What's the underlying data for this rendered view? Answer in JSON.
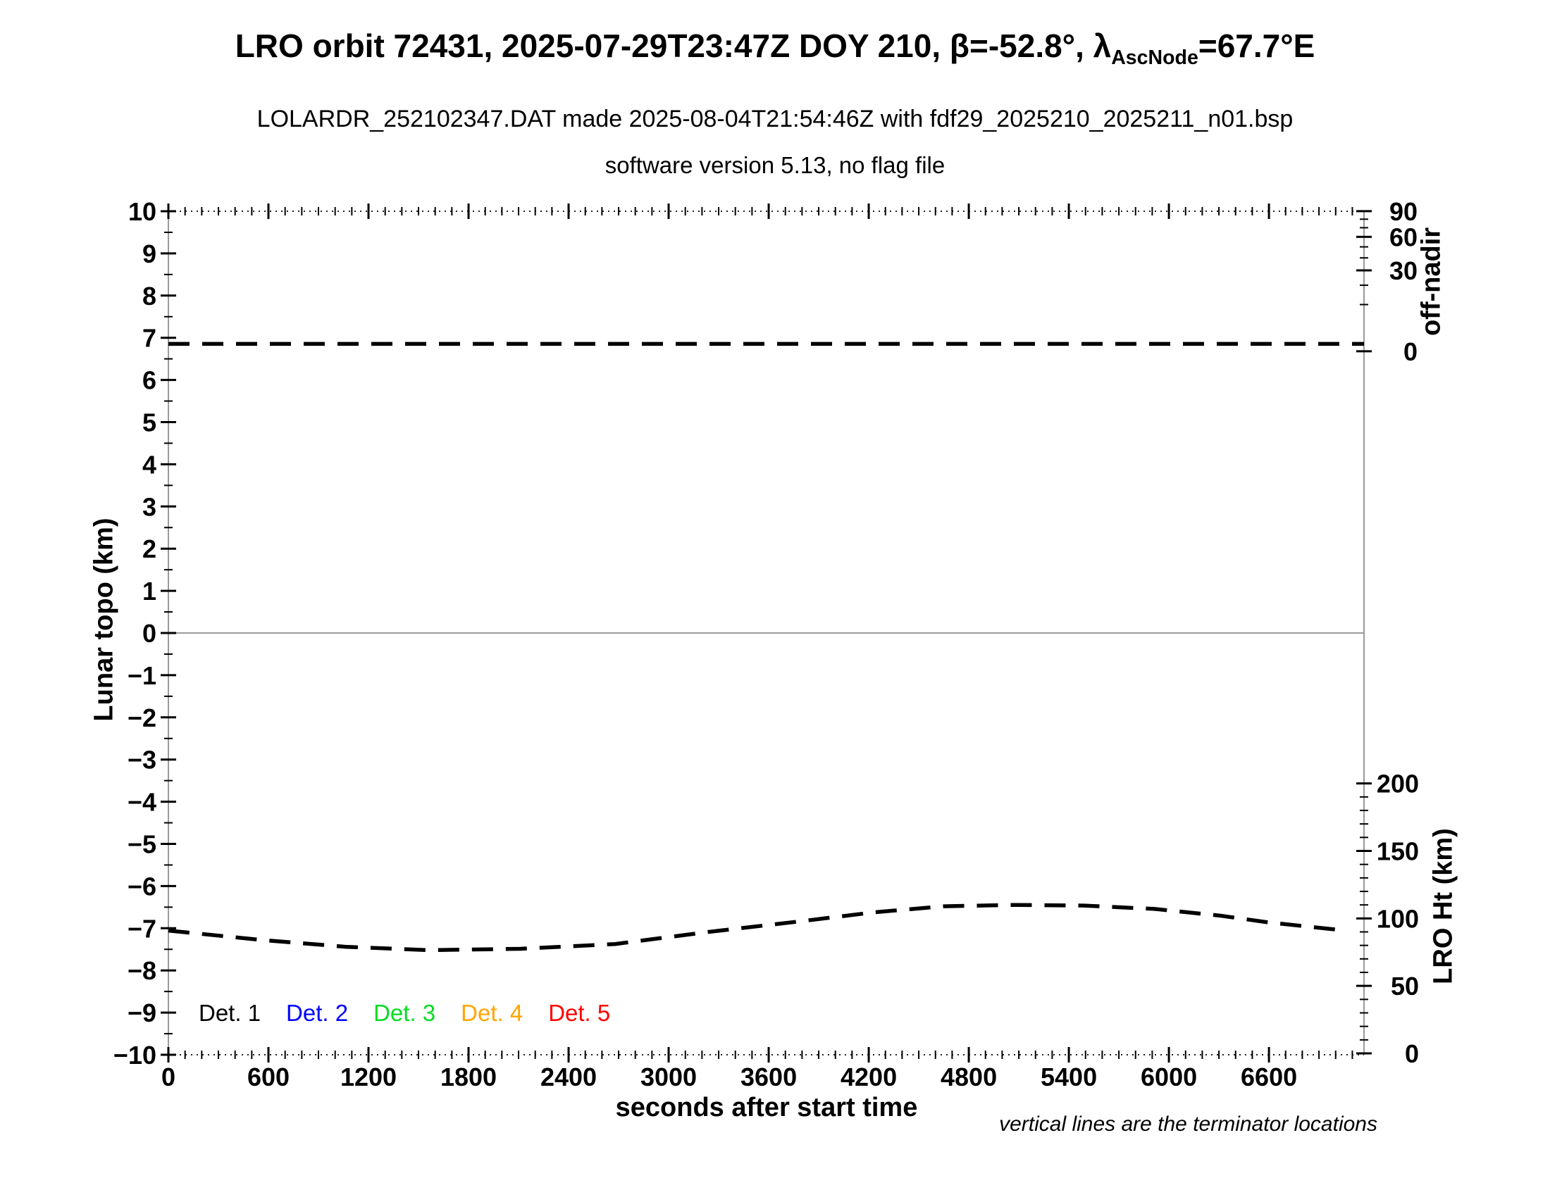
{
  "header": {
    "title_prefix": "LRO orbit 72431, 2025-07-29T23:47Z DOY 210, β=-52.8°, λ",
    "title_subscript": "AscNode",
    "title_suffix": "=67.7°E",
    "subtitle": "LOLARDR_252102347.DAT made 2025-08-04T21:54:46Z with fdf29_2025210_2025211_n01.bsp",
    "subtitle2": "software version 5.13, no flag file"
  },
  "footnote": "vertical lines are the terminator locations",
  "legend": {
    "items": [
      {
        "label": "Det. 1",
        "color": "#000000"
      },
      {
        "label": "Det. 2",
        "color": "#0000ff"
      },
      {
        "label": "Det. 3",
        "color": "#00dd22"
      },
      {
        "label": "Det. 4",
        "color": "#ffa500"
      },
      {
        "label": "Det. 5",
        "color": "#ff0000"
      }
    ]
  },
  "chart_data": {
    "type": "line",
    "title": "LRO orbit 72431, 2025-07-29T23:47Z DOY 210, beta=-52.8deg, lambda_AscNode=67.7E",
    "x_axis": {
      "label": "seconds after start time",
      "min": 0,
      "max": 7170,
      "major_tick_step": 600,
      "major_tick_max": 6600,
      "minor_tick_step": 100
    },
    "y_left_axis": {
      "label": "Lunar topo (km)",
      "min": -10,
      "max": 10,
      "major_tick_step": 1,
      "minor_tick_step": 0.5
    },
    "y_right_top_axis": {
      "label": "off-nadir",
      "unit": "deg",
      "labeled_ticks": [
        90,
        60,
        30,
        0
      ],
      "minor_tick_step": 10,
      "max": 90,
      "scale": "sqrt",
      "map_offset": 6.68,
      "map_sqrt_scale": 0.3501
    },
    "y_right_bottom_axis": {
      "label": "LRO Ht (km)",
      "labeled_ticks": [
        200,
        150,
        100,
        50,
        0
      ],
      "minor_tick_step": 10,
      "max": 200,
      "scale": "linear",
      "map_offset": -9.9667,
      "map_km_scale": 0.032
    },
    "grid": false,
    "zero_line": true,
    "line_color": "#000000",
    "frame_gray": "#9a9a9a",
    "series": [
      {
        "name": "off-nadir-angle",
        "axis": "offnadir",
        "line_style": "dashed",
        "color": "#000000",
        "points": [
          [
            0,
            0.25
          ],
          [
            7170,
            0.25
          ]
        ]
      },
      {
        "name": "lro-height",
        "axis": "ht",
        "line_style": "dashed",
        "color": "#000000",
        "points": [
          [
            0,
            91
          ],
          [
            560,
            84
          ],
          [
            1060,
            79
          ],
          [
            1560,
            76.5
          ],
          [
            2110,
            77.5
          ],
          [
            2680,
            81
          ],
          [
            3240,
            90
          ],
          [
            3800,
            98
          ],
          [
            4230,
            104.5
          ],
          [
            4650,
            109
          ],
          [
            5070,
            110
          ],
          [
            5490,
            109.5
          ],
          [
            5915,
            107
          ],
          [
            6310,
            102
          ],
          [
            6600,
            97
          ],
          [
            7060,
            91
          ]
        ]
      }
    ]
  }
}
